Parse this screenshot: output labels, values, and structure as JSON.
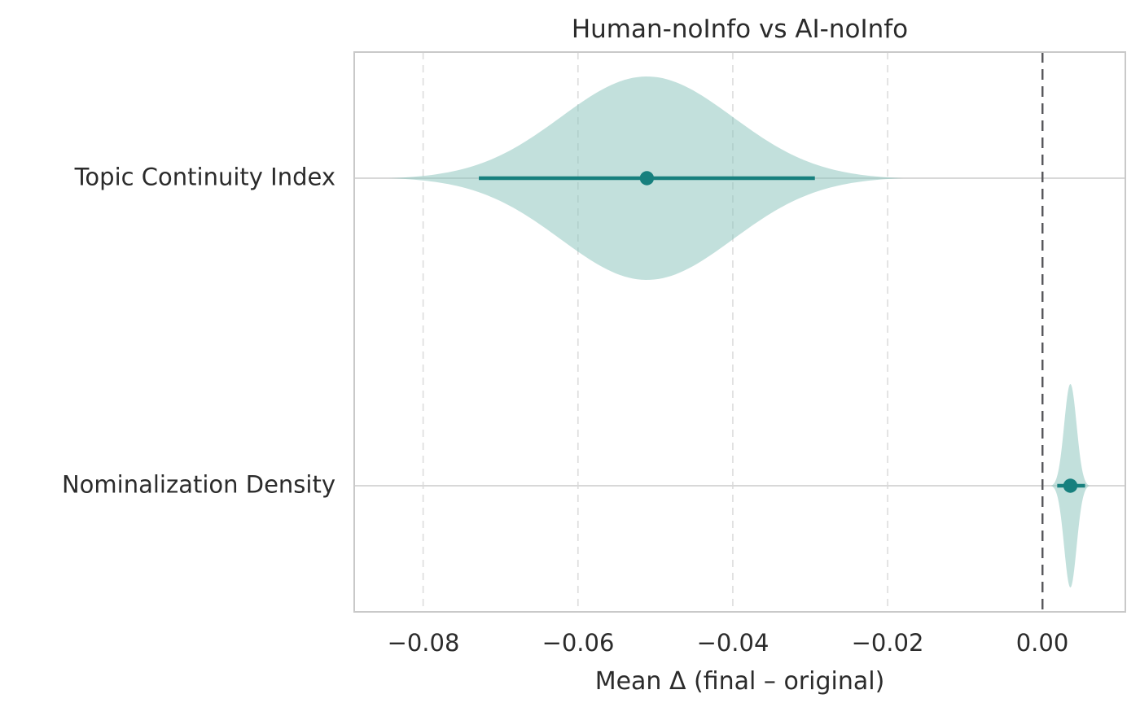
{
  "title": "Human-noInfo vs AI-noInfo",
  "chart_data": {
    "type": "violin",
    "orientation": "horizontal",
    "title": "Human-noInfo vs AI-noInfo",
    "xlabel": "Mean Δ (final – original)",
    "xlim": [
      -0.0889,
      0.0107
    ],
    "x_ticks": [
      -0.08,
      -0.06,
      -0.04,
      -0.02,
      0.0
    ],
    "x_tick_labels": [
      "−0.08",
      "−0.06",
      "−0.04",
      "−0.02",
      "0.00"
    ],
    "zero_reference_line": 0.0,
    "grid": {
      "vertical_dashed": true,
      "horizontal_row_lines": true
    },
    "legend": "none",
    "categories": [
      "Topic Continuity Index",
      "Nominalization Density"
    ],
    "series": [
      {
        "label": "Topic Continuity Index",
        "mean": -0.0511,
        "ci_low": -0.0728,
        "ci_high": -0.0294,
        "violin_min": -0.0845,
        "violin_max": -0.018,
        "sigma": 0.0111
      },
      {
        "label": "Nominalization Density",
        "mean": 0.0036,
        "ci_low": 0.0019,
        "ci_high": 0.0055,
        "violin_min": 0.001,
        "violin_max": 0.0061,
        "sigma": 0.0008
      }
    ],
    "colors": {
      "violin_fill": "#8fc7c0",
      "violin_fill_opacity": 0.55,
      "accent": "#17807e",
      "grid_line": "#dedede",
      "row_line": "#d8d8d8",
      "zero_line": "#56565a",
      "border": "#c9c9c9",
      "text": "#2b2b2b"
    }
  }
}
